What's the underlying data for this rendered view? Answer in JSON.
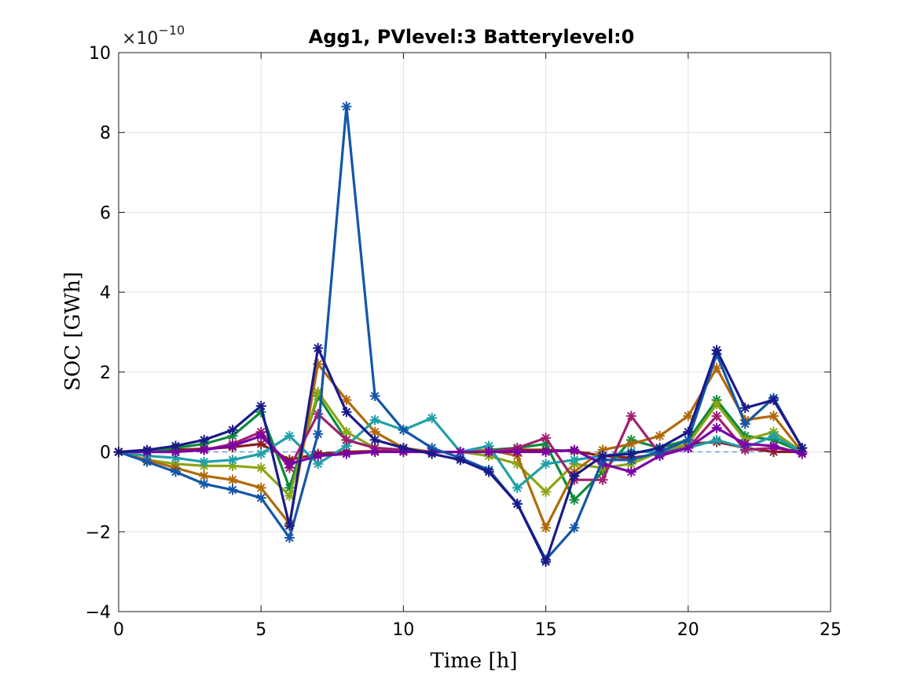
{
  "chart_data": {
    "type": "line",
    "title": "Agg1, PVlevel:3 Batterylevel:0",
    "xlabel": "Time [h]",
    "ylabel": "SOC [GWh]",
    "y_exponent_base": "×10",
    "y_exponent_power": "−10",
    "xlim": [
      0,
      25
    ],
    "ylim": [
      -4,
      10
    ],
    "xticks": [
      0,
      5,
      10,
      15,
      20,
      25
    ],
    "yticks": [
      -4,
      -2,
      0,
      2,
      4,
      6,
      8,
      10
    ],
    "xtick_labels": [
      "0",
      "5",
      "10",
      "15",
      "20",
      "25"
    ],
    "ytick_labels": [
      "−4",
      "−2",
      "0",
      "2",
      "4",
      "6",
      "8",
      "10"
    ],
    "grid": true,
    "marker": "asterisk",
    "reference_line": {
      "y": 0,
      "color": "#4a6ed8",
      "style": "dashed"
    },
    "x": [
      0,
      1,
      2,
      3,
      4,
      5,
      6,
      7,
      8,
      9,
      10,
      11,
      12,
      13,
      14,
      15,
      16,
      17,
      18,
      19,
      20,
      21,
      22,
      23,
      24
    ],
    "series": [
      {
        "color": "#8a1d1d",
        "values": [
          0,
          0.02,
          0.05,
          0.08,
          0.12,
          0.2,
          -0.2,
          -0.05,
          0,
          0.02,
          0.02,
          0,
          0,
          0.02,
          0.05,
          0.05,
          0.02,
          -0.1,
          -0.15,
          -0.05,
          0.2,
          0.25,
          0.1,
          0,
          0
        ]
      },
      {
        "color": "#0b8a3a",
        "values": [
          0,
          0,
          0.1,
          0.2,
          0.4,
          1.0,
          -0.9,
          1.4,
          0.3,
          0.1,
          0.05,
          0,
          0,
          0.05,
          0.1,
          0.2,
          -1.2,
          -0.5,
          0.3,
          0.1,
          0.3,
          1.3,
          0.4,
          0.3,
          0
        ]
      },
      {
        "color": "#8aa615",
        "values": [
          0,
          -0.2,
          -0.3,
          -0.35,
          -0.35,
          -0.4,
          -1.1,
          1.5,
          0.5,
          0.1,
          0.05,
          0,
          0,
          -0.1,
          -0.3,
          -1.0,
          -0.3,
          -0.4,
          -0.3,
          0,
          0.2,
          1.2,
          0.3,
          0.5,
          0
        ]
      },
      {
        "color": "#b06a0a",
        "values": [
          0,
          -0.2,
          -0.4,
          -0.6,
          -0.7,
          -0.9,
          -1.8,
          2.2,
          1.3,
          0.5,
          0.1,
          0,
          0,
          0.05,
          -0.1,
          -1.9,
          -0.5,
          0.05,
          0.2,
          0.4,
          0.9,
          2.1,
          0.8,
          0.9,
          0
        ]
      },
      {
        "color": "#1f9fa8",
        "values": [
          0,
          -0.1,
          -0.15,
          -0.25,
          -0.2,
          -0.05,
          0.4,
          -0.3,
          0.15,
          0.8,
          0.55,
          0.85,
          0,
          0.15,
          -0.9,
          -0.3,
          -0.2,
          -0.1,
          0,
          0,
          0.1,
          0.3,
          0.1,
          0.4,
          0
        ]
      },
      {
        "color": "#a02070",
        "values": [
          0,
          0,
          0,
          0.05,
          0.2,
          0.5,
          -0.4,
          0.95,
          0.3,
          0.1,
          0.05,
          0,
          0,
          0,
          0.1,
          0.35,
          -0.7,
          -0.7,
          0.9,
          -0.05,
          0.1,
          0.9,
          0.05,
          0.1,
          0
        ]
      },
      {
        "color": "#7a00a8",
        "values": [
          0,
          0,
          0,
          0.05,
          0.15,
          0.4,
          -0.3,
          -0.1,
          -0.05,
          0,
          0,
          0,
          0,
          0,
          0,
          0,
          0.05,
          -0.3,
          -0.5,
          -0.1,
          0.1,
          0.6,
          0.2,
          0.15,
          -0.05
        ]
      },
      {
        "color": "#1456a8",
        "values": [
          0,
          -0.25,
          -0.5,
          -0.8,
          -0.95,
          -1.15,
          -2.15,
          0.45,
          8.65,
          1.4,
          0.55,
          0.1,
          -0.15,
          -0.45,
          -1.3,
          -2.7,
          -1.9,
          -0.2,
          -0.2,
          0,
          0.3,
          2.45,
          0.7,
          1.35,
          0.1
        ]
      },
      {
        "color": "#1a1a8a",
        "values": [
          0,
          0.05,
          0.15,
          0.3,
          0.55,
          1.15,
          -1.85,
          2.6,
          1.0,
          0.3,
          0.1,
          -0.05,
          -0.2,
          -0.5,
          -1.3,
          -2.75,
          -0.6,
          -0.1,
          -0.05,
          0.1,
          0.5,
          2.55,
          1.1,
          1.3,
          0.1
        ]
      }
    ]
  }
}
